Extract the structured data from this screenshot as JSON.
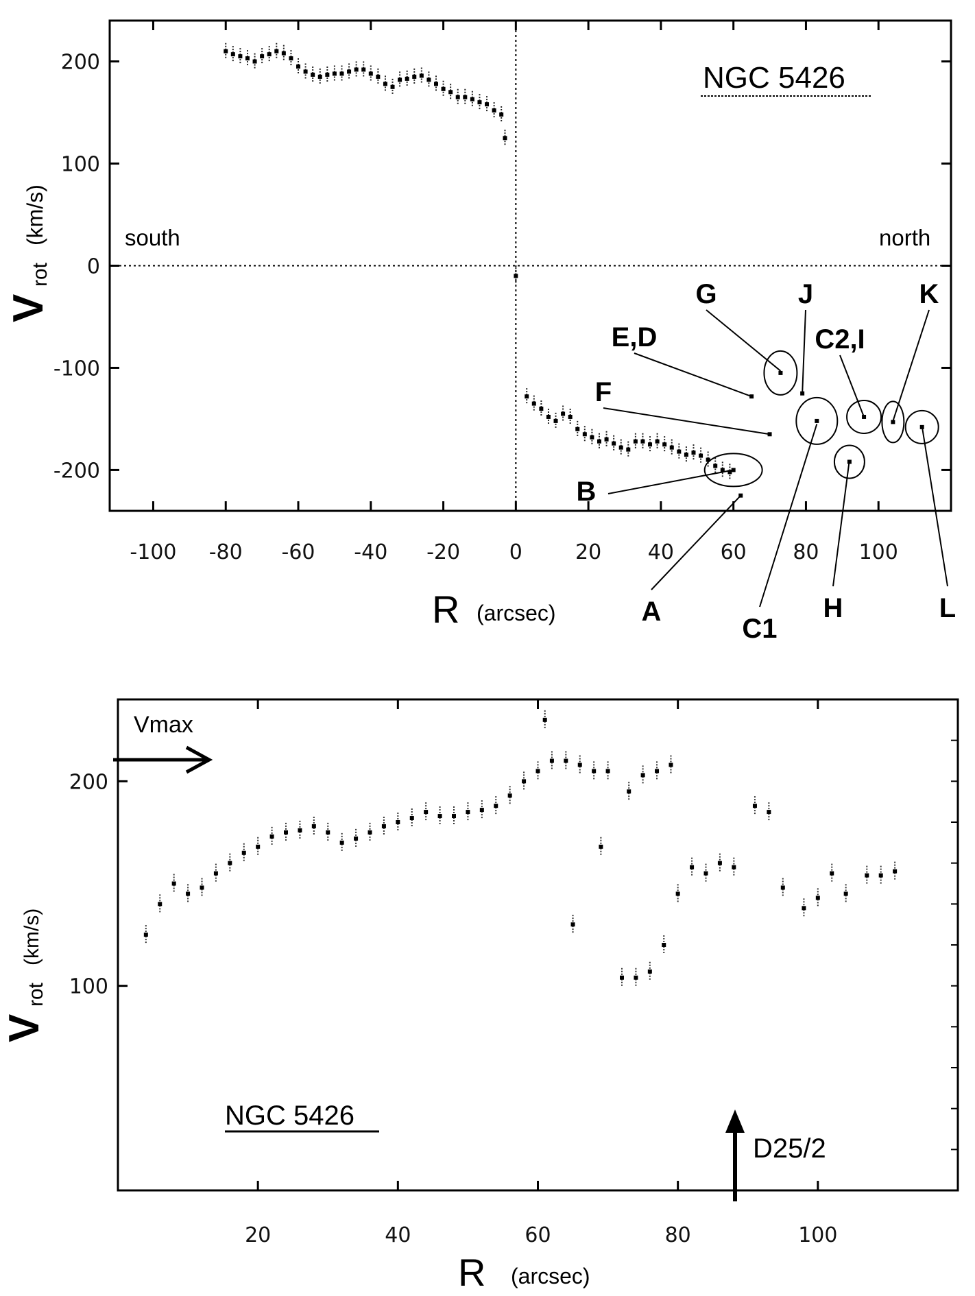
{
  "chart_data": [
    {
      "type": "scatter",
      "title": "NGC 5426",
      "xlabel": "R",
      "xlabel_unit": "(arcsec)",
      "ylabel": "V",
      "ylabel_sub": "rot",
      "ylabel_unit": "(km/s)",
      "xlim": [
        -112,
        120
      ],
      "ylim": [
        -240,
        240
      ],
      "xticks": [
        -100,
        -80,
        -60,
        -40,
        -20,
        0,
        20,
        40,
        60,
        80,
        100
      ],
      "yticks": [
        -200,
        -100,
        0,
        100,
        200
      ],
      "grid": false,
      "zero_lines": true,
      "annotations": {
        "south": "south",
        "north": "north"
      },
      "series": [
        {
          "x": [
            -80,
            -78,
            -76,
            -74,
            -72,
            -70,
            -68,
            -66,
            -64,
            -62,
            -60,
            -58,
            -56,
            -54,
            -52,
            -50,
            -48,
            -46,
            -44,
            -42,
            -40,
            -38,
            -36,
            -34,
            -32,
            -30,
            -28,
            -26,
            -24,
            -22,
            -20,
            -18,
            -16,
            -14,
            -12,
            -10,
            -8,
            -6,
            -4,
            -3,
            0
          ],
          "y": [
            210,
            207,
            205,
            203,
            200,
            205,
            207,
            210,
            208,
            203,
            195,
            190,
            187,
            185,
            187,
            188,
            188,
            190,
            192,
            192,
            188,
            185,
            178,
            175,
            182,
            183,
            185,
            186,
            182,
            178,
            173,
            170,
            165,
            165,
            163,
            160,
            158,
            152,
            148,
            125,
            -10
          ]
        },
        {
          "x": [
            3,
            5,
            7,
            9,
            11,
            13,
            15,
            17,
            19,
            21,
            23,
            25,
            27,
            29,
            31,
            33,
            35,
            37,
            39,
            41,
            43,
            45,
            47,
            49,
            51,
            53,
            55,
            57,
            59
          ],
          "y": [
            -128,
            -135,
            -140,
            -148,
            -152,
            -145,
            -148,
            -160,
            -165,
            -168,
            -172,
            -170,
            -174,
            -178,
            -180,
            -172,
            -172,
            -175,
            -172,
            -175,
            -178,
            -182,
            -185,
            -183,
            -186,
            -190,
            -196,
            -200,
            -202
          ]
        }
      ],
      "regions": [
        {
          "label": "A",
          "x": 62,
          "y": -225
        },
        {
          "label": "B",
          "x": 60,
          "y": -200
        },
        {
          "label": "C1",
          "x": 83,
          "y": -155
        },
        {
          "label": "C2,I",
          "x": 96,
          "y": -148
        },
        {
          "label": "D",
          "x": 65,
          "y": -128
        },
        {
          "label": "E",
          "x": 65,
          "y": -128
        },
        {
          "label": "F",
          "x": 70,
          "y": -165
        },
        {
          "label": "G",
          "x": 73,
          "y": -103
        },
        {
          "label": "H",
          "x": 92,
          "y": -190
        },
        {
          "label": "J",
          "x": 80,
          "y": -125
        },
        {
          "label": "K",
          "x": 105,
          "y": -153
        },
        {
          "label": "L",
          "x": 112,
          "y": -157
        }
      ],
      "region_labels": {
        "A": "A",
        "B": "B",
        "C1": "C1",
        "C2I": "C2,I",
        "ED": "E,D",
        "F": "F",
        "G": "G",
        "H": "H",
        "J": "J",
        "K": "K",
        "L": "L"
      }
    },
    {
      "type": "scatter",
      "title": "NGC 5426",
      "xlabel": "R",
      "xlabel_unit": "(arcsec)",
      "ylabel": "V",
      "ylabel_sub": "rot",
      "ylabel_unit": "(km/s)",
      "xlim": [
        0,
        120
      ],
      "ylim": [
        0,
        240
      ],
      "xticks": [
        20,
        40,
        60,
        80,
        100
      ],
      "yticks": [
        100,
        200
      ],
      "grid": false,
      "annotations": {
        "vmax": "Vmax",
        "vmax_value": 212,
        "dzo": "D25/2",
        "dzo_x": 89
      },
      "points": {
        "x": [
          4,
          6,
          8,
          10,
          12,
          14,
          16,
          18,
          20,
          22,
          24,
          26,
          28,
          30,
          32,
          34,
          36,
          38,
          40,
          42,
          44,
          46,
          48,
          50,
          52,
          54,
          56,
          58,
          60,
          61,
          62,
          64,
          65,
          66,
          68,
          69,
          70,
          72,
          73,
          74,
          75,
          76,
          77,
          78,
          79,
          80,
          82,
          84,
          86,
          88,
          91,
          93,
          95,
          98,
          100,
          102,
          104,
          107,
          109,
          111
        ],
        "y": [
          125,
          140,
          150,
          145,
          148,
          155,
          160,
          165,
          168,
          173,
          175,
          176,
          178,
          175,
          170,
          172,
          175,
          178,
          180,
          182,
          185,
          183,
          183,
          185,
          186,
          188,
          193,
          200,
          205,
          230,
          210,
          210,
          130,
          208,
          205,
          168,
          205,
          104,
          195,
          104,
          203,
          107,
          205,
          120,
          208,
          145,
          158,
          155,
          160,
          158,
          188,
          185,
          148,
          138,
          143,
          155,
          145,
          154,
          154,
          156
        ]
      }
    }
  ]
}
